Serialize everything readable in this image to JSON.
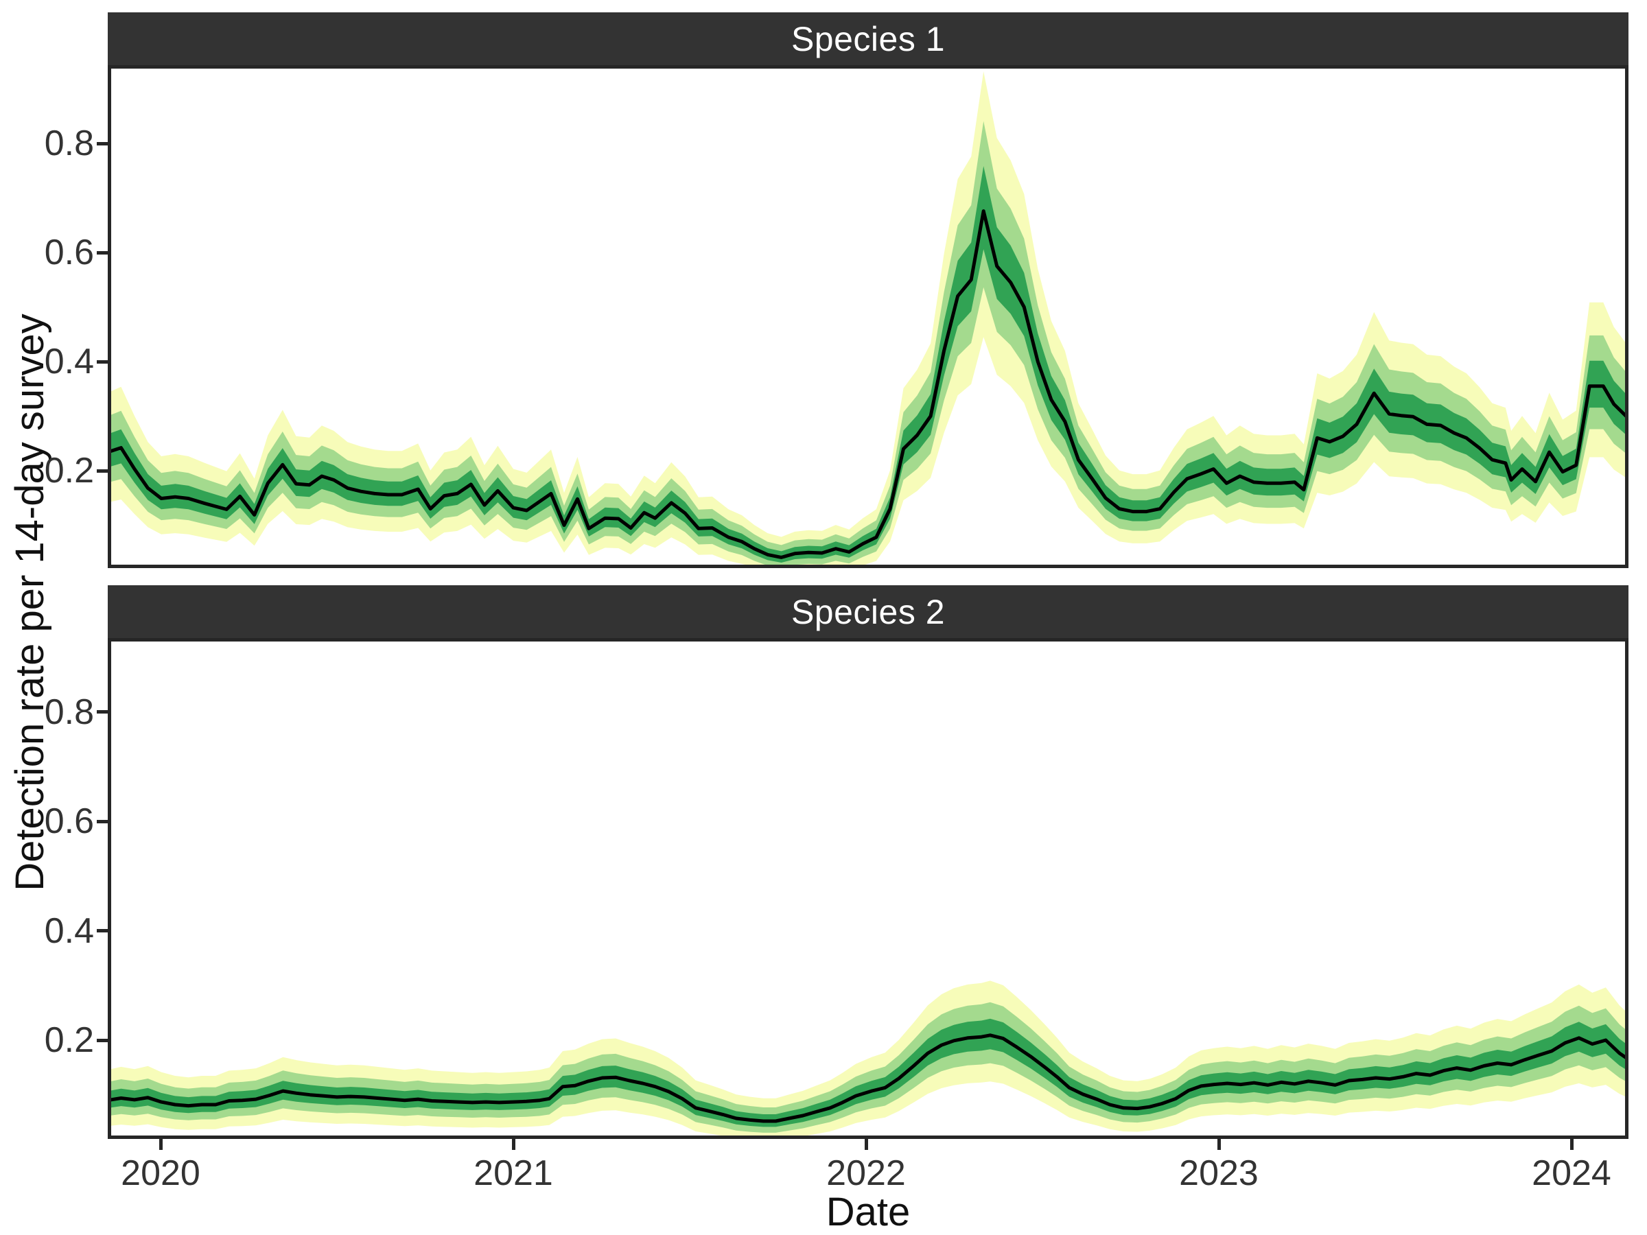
{
  "figure": {
    "y_axis_title": "Detection rate per 14-day survey",
    "x_axis_title": "Date",
    "facets": [
      {
        "label": "Species 1"
      },
      {
        "label": "Species 2"
      }
    ],
    "x_ticks": [
      2020,
      2021,
      2022,
      2023,
      2024
    ],
    "x_tick_labels": [
      "2020",
      "2021",
      "2022",
      "2023",
      "2024"
    ],
    "y_ticks": [
      0.2,
      0.4,
      0.6,
      0.8
    ],
    "y_tick_labels": [
      "0.2",
      "0.4",
      "0.6",
      "0.8"
    ],
    "colors": {
      "outer_band": "#f7fcb9",
      "middle_band": "#a4da8e",
      "inner_band": "#31a354",
      "median_line": "#000000",
      "strip_bg": "#333333",
      "strip_text": "#ffffff",
      "axis_text": "#333333",
      "axis_title": "#111111",
      "panel_border": "#262626",
      "background": "#ffffff"
    }
  },
  "chart_data": [
    {
      "type": "line",
      "title": "Species 1",
      "xlabel": "Date",
      "ylabel": "Detection rate per 14-day survey",
      "xlim": [
        2019.85,
        2024.161
      ],
      "ylim": [
        0.019,
        0.943
      ],
      "grid": "off",
      "legend": "none",
      "series_note": "posterior median detection rate with three nested credible-interval ribbons (inner dark green, middle light green, outer pale yellow), surveys every 14 days",
      "x": [
        2019.85,
        2019.888,
        2019.926,
        2019.964,
        2020.002,
        2020.041,
        2020.079,
        2020.125,
        2020.187,
        2020.225,
        2020.266,
        2020.304,
        2020.346,
        2020.384,
        2020.422,
        2020.457,
        2020.491,
        2020.53,
        2020.568,
        2020.607,
        2020.645,
        2020.684,
        2020.73,
        2020.765,
        2020.804,
        2020.841,
        2020.88,
        2020.918,
        2020.956,
        2021.0,
        2021.038,
        2021.107,
        2021.144,
        2021.182,
        2021.214,
        2021.26,
        2021.298,
        2021.333,
        2021.371,
        2021.402,
        2021.448,
        2021.487,
        2021.525,
        2021.564,
        2021.61,
        2021.648,
        2021.683,
        2021.721,
        2021.76,
        2021.798,
        2021.837,
        2021.875,
        2021.914,
        2021.952,
        2021.991,
        2022.029,
        2022.068,
        2022.106,
        2022.145,
        2022.183,
        2022.221,
        2022.26,
        2022.298,
        2022.333,
        2022.371,
        2022.41,
        2022.448,
        2022.487,
        2022.525,
        2022.564,
        2022.602,
        2022.641,
        2022.679,
        2022.718,
        2022.756,
        2022.795,
        2022.833,
        2022.872,
        2022.91,
        2022.949,
        2022.985,
        2023.022,
        2023.06,
        2023.099,
        2023.137,
        2023.176,
        2023.215,
        2023.241,
        2023.279,
        2023.314,
        2023.352,
        2023.391,
        2023.44,
        2023.483,
        2023.517,
        2023.551,
        2023.59,
        2023.629,
        2023.667,
        2023.702,
        2023.74,
        2023.775,
        2023.813,
        2023.829,
        2023.86,
        2023.898,
        2023.937,
        2023.975,
        2024.013,
        2024.051,
        2024.09,
        2024.12,
        2024.161
      ],
      "median": [
        0.234,
        0.242,
        0.203,
        0.168,
        0.149,
        0.152,
        0.149,
        0.14,
        0.129,
        0.153,
        0.119,
        0.177,
        0.211,
        0.176,
        0.174,
        0.19,
        0.183,
        0.168,
        0.162,
        0.158,
        0.156,
        0.156,
        0.166,
        0.13,
        0.154,
        0.158,
        0.175,
        0.137,
        0.163,
        0.132,
        0.127,
        0.158,
        0.1,
        0.148,
        0.094,
        0.113,
        0.112,
        0.095,
        0.123,
        0.113,
        0.141,
        0.122,
        0.094,
        0.095,
        0.078,
        0.07,
        0.057,
        0.046,
        0.041,
        0.048,
        0.05,
        0.049,
        0.057,
        0.051,
        0.066,
        0.078,
        0.13,
        0.24,
        0.265,
        0.3,
        0.42,
        0.52,
        0.55,
        0.676,
        0.575,
        0.545,
        0.5,
        0.4,
        0.33,
        0.29,
        0.22,
        0.185,
        0.15,
        0.13,
        0.125,
        0.125,
        0.13,
        0.16,
        0.185,
        0.194,
        0.203,
        0.177,
        0.19,
        0.179,
        0.177,
        0.177,
        0.179,
        0.165,
        0.26,
        0.253,
        0.263,
        0.285,
        0.342,
        0.304,
        0.301,
        0.299,
        0.285,
        0.283,
        0.269,
        0.26,
        0.241,
        0.22,
        0.214,
        0.183,
        0.203,
        0.18,
        0.234,
        0.198,
        0.21,
        0.355,
        0.355,
        0.322,
        0.296
      ],
      "interval_model": {
        "inner": {
          "slope": 0.1,
          "base": 0.006
        },
        "middle": {
          "slope": 0.2,
          "base": 0.012
        },
        "outer": {
          "slope": 0.33,
          "base": 0.02
        },
        "upper_factor": 1.12,
        "lower_factor": 0.95,
        "clamp_lo": 0.024,
        "clamp_hi": 0.932
      }
    },
    {
      "type": "line",
      "title": "Species 2",
      "xlabel": "Date",
      "ylabel": "Detection rate per 14-day survey",
      "xlim": [
        2019.85,
        2024.161
      ],
      "ylim": [
        0.019,
        0.935
      ],
      "grid": "off",
      "legend": "none",
      "series_note": "posterior median detection rate with three nested credible-interval ribbons (inner dark green, middle light green, outer pale yellow), surveys every 14 days",
      "x": [
        2019.85,
        2019.888,
        2019.926,
        2019.964,
        2020.002,
        2020.041,
        2020.079,
        2020.117,
        2020.156,
        2020.194,
        2020.232,
        2020.27,
        2020.309,
        2020.347,
        2020.385,
        2020.424,
        2020.462,
        2020.5,
        2020.539,
        2020.577,
        2020.615,
        2020.654,
        2020.692,
        2020.73,
        2020.769,
        2020.807,
        2020.845,
        2020.884,
        2020.922,
        2020.96,
        2020.998,
        2021.037,
        2021.075,
        2021.102,
        2021.14,
        2021.175,
        2021.213,
        2021.252,
        2021.29,
        2021.329,
        2021.367,
        2021.402,
        2021.44,
        2021.479,
        2021.517,
        2021.556,
        2021.594,
        2021.632,
        2021.671,
        2021.709,
        2021.744,
        2021.782,
        2021.821,
        2021.859,
        2021.898,
        2021.933,
        2021.971,
        2022.016,
        2022.054,
        2022.093,
        2022.135,
        2022.175,
        2022.214,
        2022.249,
        2022.288,
        2022.327,
        2022.352,
        2022.389,
        2022.428,
        2022.467,
        2022.506,
        2022.541,
        2022.576,
        2022.615,
        2022.654,
        2022.691,
        2022.73,
        2022.769,
        2022.804,
        2022.839,
        2022.878,
        2022.915,
        2022.95,
        2022.986,
        2023.024,
        2023.062,
        2023.1,
        2023.139,
        2023.177,
        2023.215,
        2023.254,
        2023.292,
        2023.33,
        2023.369,
        2023.407,
        2023.445,
        2023.484,
        2023.522,
        2023.56,
        2023.599,
        2023.637,
        2023.675,
        2023.714,
        2023.752,
        2023.79,
        2023.829,
        2023.867,
        2023.905,
        2023.944,
        2023.982,
        2024.021,
        2024.059,
        2024.097,
        2024.136,
        2024.161
      ],
      "median": [
        0.09,
        0.094,
        0.091,
        0.095,
        0.087,
        0.082,
        0.08,
        0.082,
        0.082,
        0.089,
        0.09,
        0.092,
        0.099,
        0.107,
        0.103,
        0.1,
        0.098,
        0.096,
        0.097,
        0.096,
        0.094,
        0.092,
        0.09,
        0.092,
        0.089,
        0.088,
        0.087,
        0.086,
        0.087,
        0.086,
        0.087,
        0.088,
        0.09,
        0.093,
        0.115,
        0.117,
        0.125,
        0.131,
        0.132,
        0.126,
        0.121,
        0.115,
        0.106,
        0.093,
        0.076,
        0.07,
        0.064,
        0.057,
        0.054,
        0.052,
        0.052,
        0.057,
        0.062,
        0.069,
        0.076,
        0.086,
        0.098,
        0.107,
        0.113,
        0.13,
        0.153,
        0.176,
        0.191,
        0.199,
        0.204,
        0.206,
        0.209,
        0.203,
        0.187,
        0.17,
        0.151,
        0.133,
        0.113,
        0.101,
        0.092,
        0.082,
        0.076,
        0.075,
        0.078,
        0.084,
        0.093,
        0.108,
        0.116,
        0.119,
        0.121,
        0.119,
        0.122,
        0.118,
        0.123,
        0.12,
        0.125,
        0.122,
        0.118,
        0.126,
        0.128,
        0.131,
        0.129,
        0.133,
        0.139,
        0.136,
        0.144,
        0.149,
        0.145,
        0.153,
        0.158,
        0.155,
        0.164,
        0.172,
        0.18,
        0.195,
        0.204,
        0.193,
        0.2,
        0.176,
        0.165
      ],
      "interval_model": {
        "inner": {
          "slope": 0.1,
          "base": 0.006
        },
        "middle": {
          "slope": 0.2,
          "base": 0.012
        },
        "outer": {
          "slope": 0.33,
          "base": 0.02
        },
        "upper_factor": 1.12,
        "lower_factor": 0.95,
        "clamp_lo": 0.024,
        "clamp_hi": 0.932
      }
    }
  ]
}
